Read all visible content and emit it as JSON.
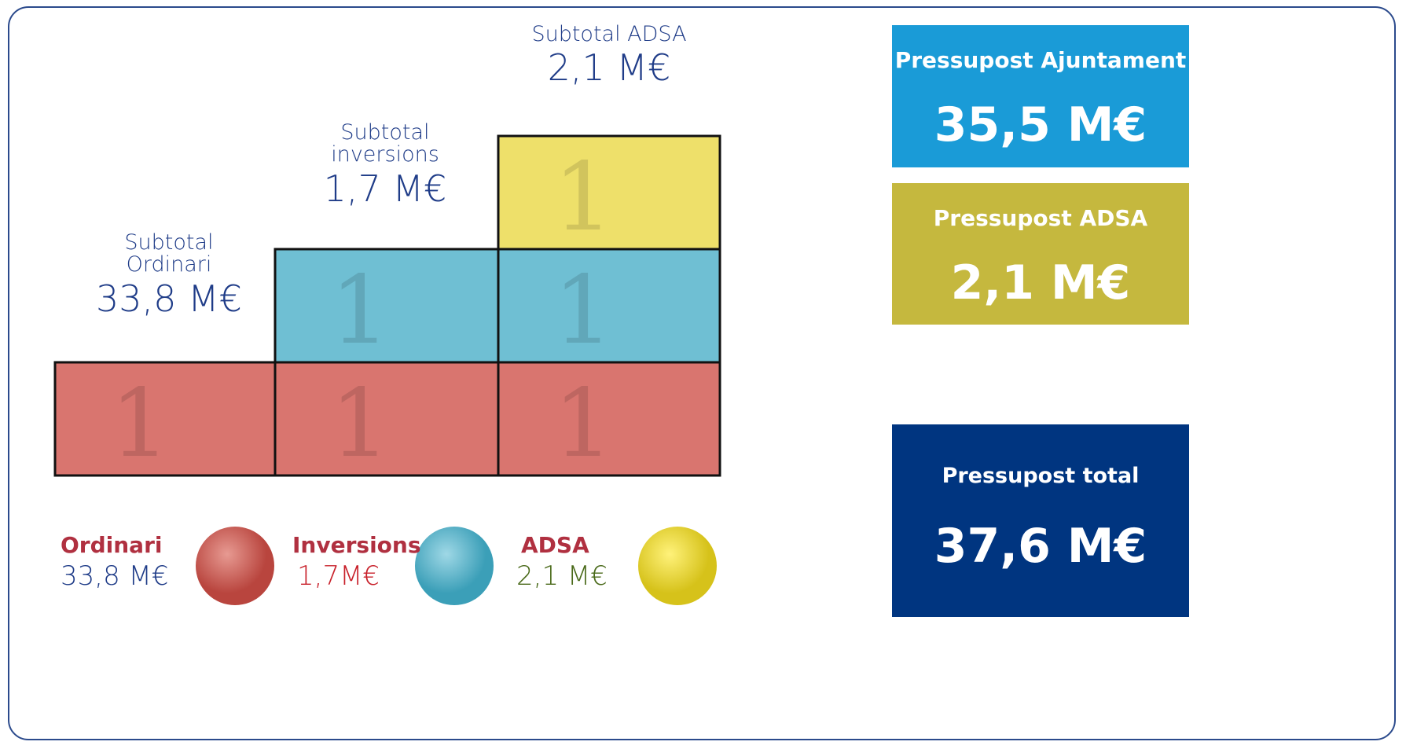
{
  "subtotals": [
    {
      "label_lines": [
        "Subtotal",
        "Ordinari"
      ],
      "amount": "33,8 M€"
    },
    {
      "label_lines": [
        "Subtotal",
        "inversions"
      ],
      "amount": "1,7 M€"
    },
    {
      "label_lines": [
        "Subtotal ADSA"
      ],
      "amount": "2,1 M€"
    }
  ],
  "legend": [
    {
      "name": "Ordinari",
      "amount": "33,8 M€"
    },
    {
      "name": "Inversions",
      "amount": "1,7M€"
    },
    {
      "name": "ADSA",
      "amount": "2,1 M€"
    }
  ],
  "summary": [
    {
      "title": "Pressupost Ajuntament",
      "amount": "35,5 M€"
    },
    {
      "title": "Pressupost ADSA",
      "amount": "2,1 M€"
    },
    {
      "title": "Pressupost total",
      "amount": "37,6 M€"
    }
  ]
}
